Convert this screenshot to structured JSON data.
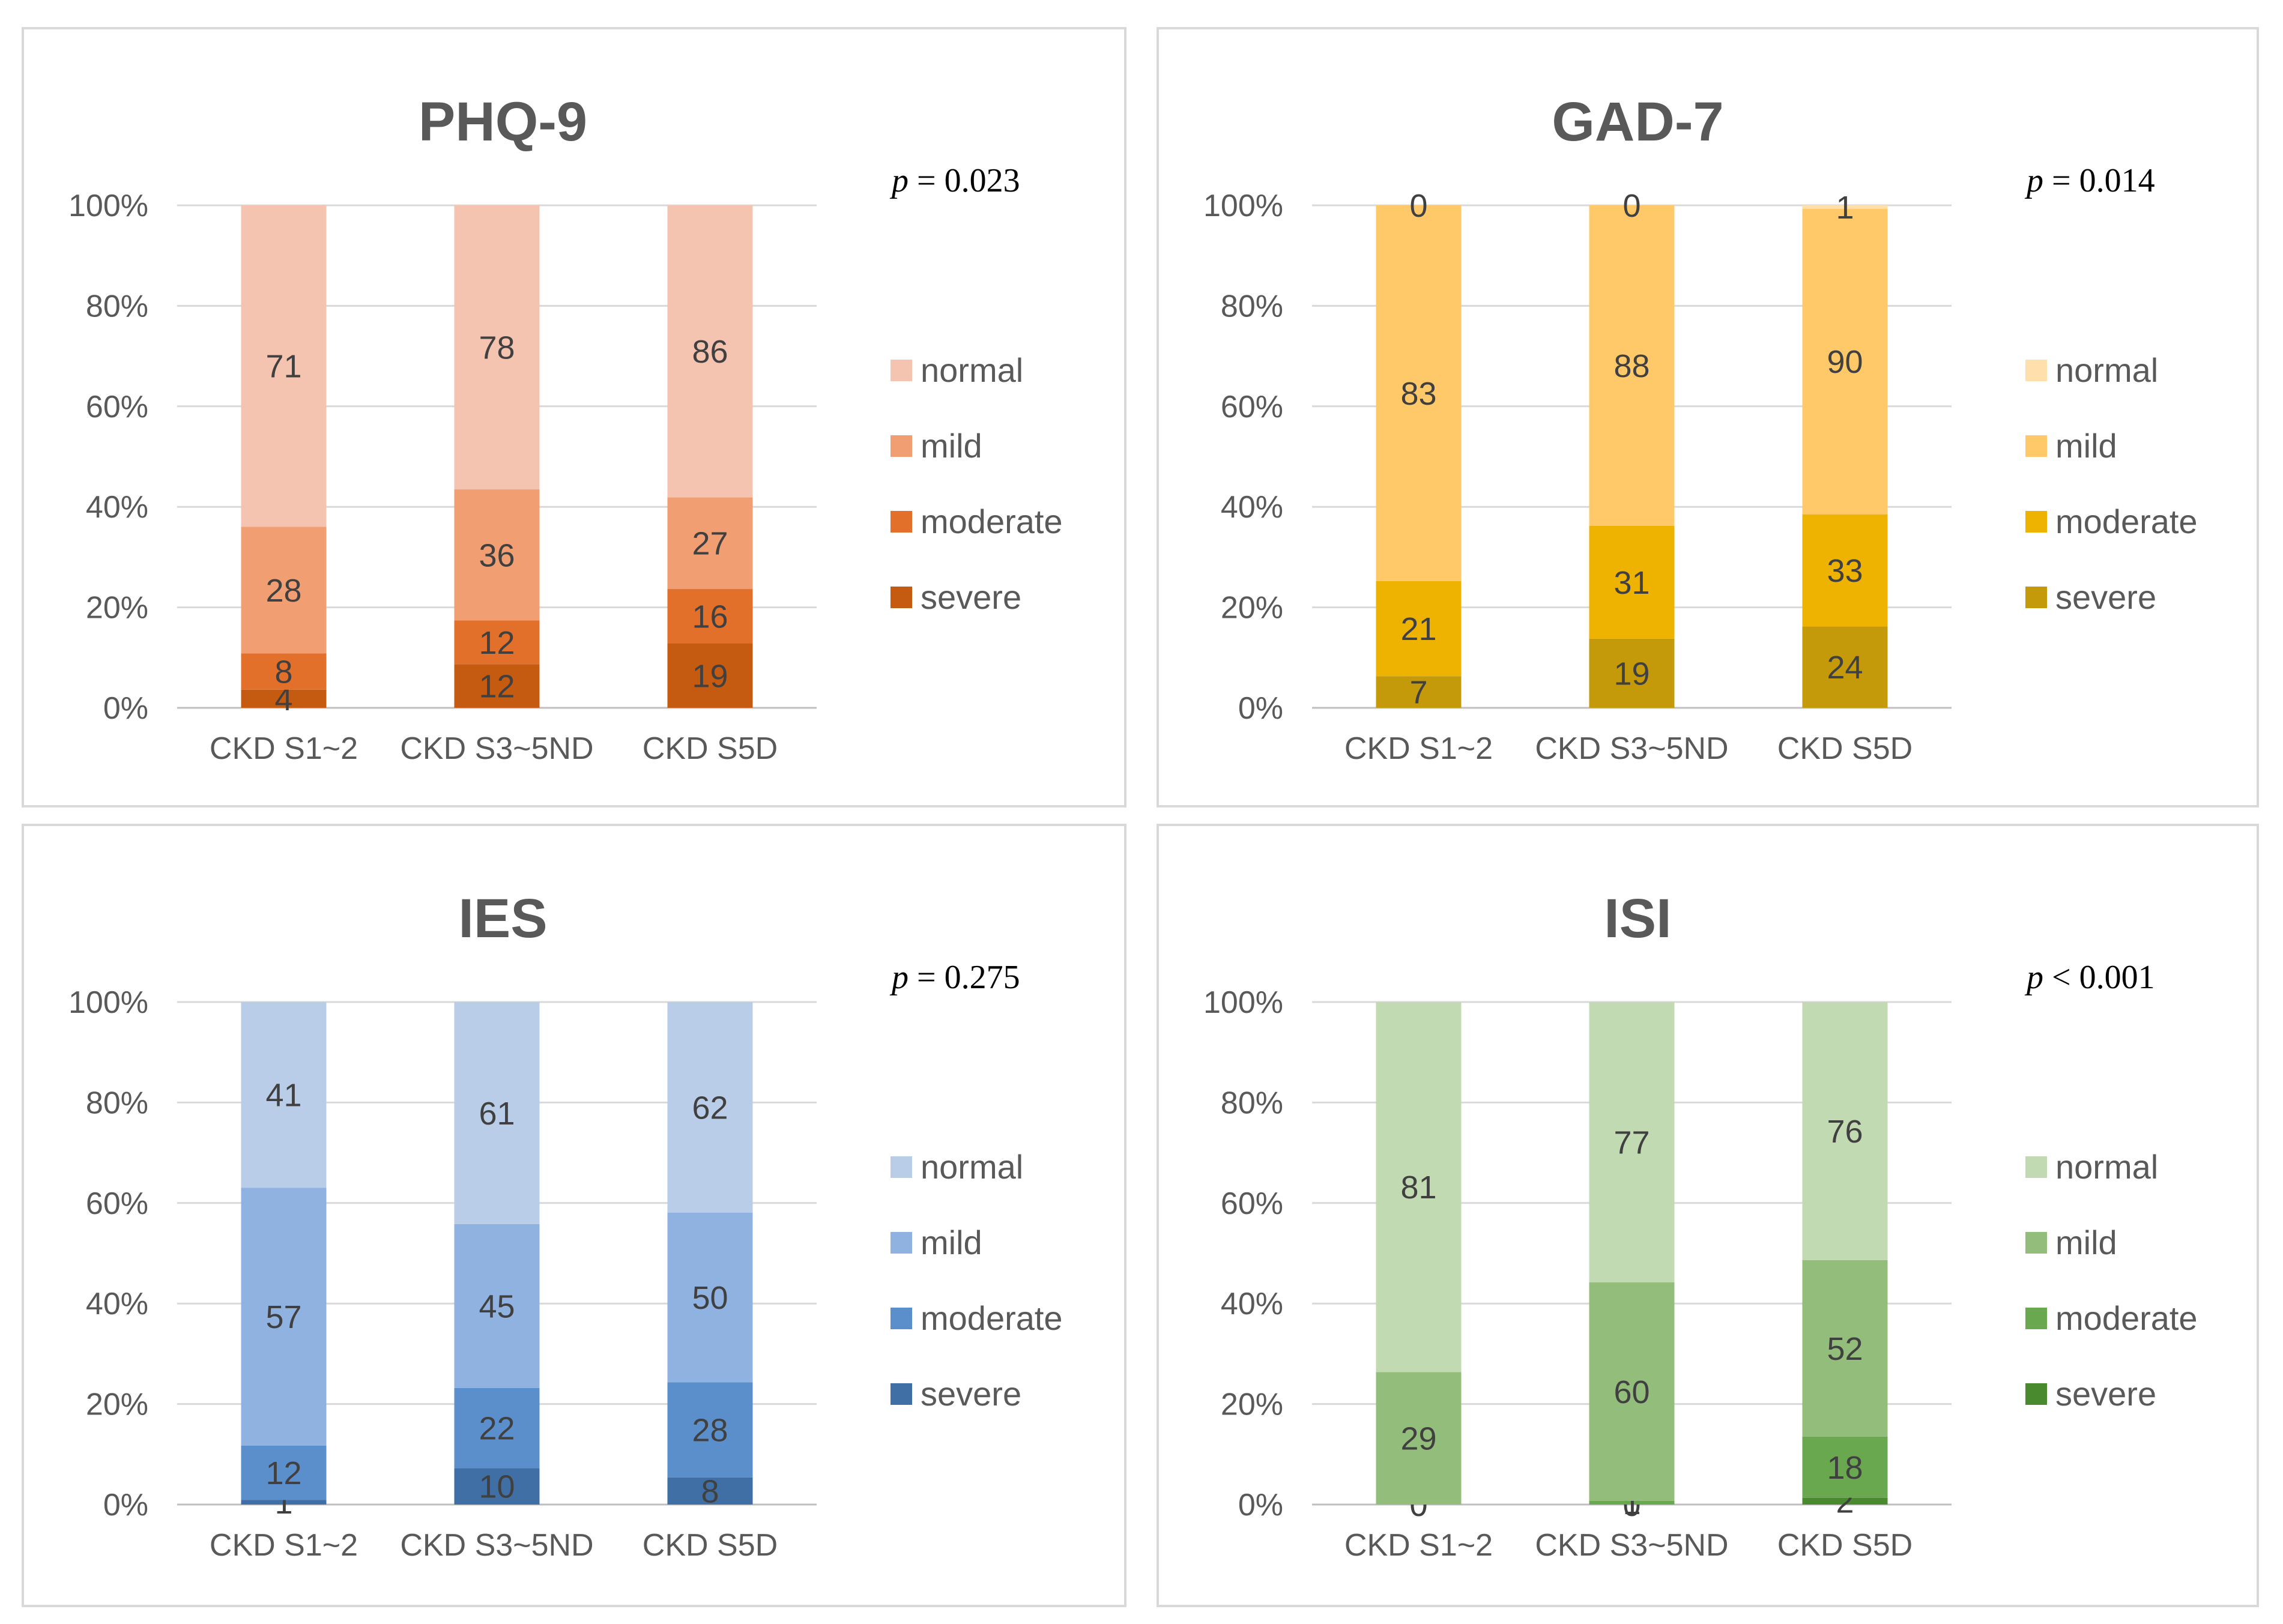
{
  "chart_data": [
    {
      "type": "bar",
      "stacked": "percent",
      "title": "PHQ-9",
      "p_value": {
        "symbol": "p",
        "text": "= 0.023"
      },
      "categories": [
        "CKD S1~2",
        "CKD S3~5ND",
        "CKD S5D"
      ],
      "y_ticks": [
        "0%",
        "20%",
        "40%",
        "60%",
        "80%",
        "100%"
      ],
      "ylim": [
        0,
        100
      ],
      "grid": true,
      "legend_position": "right",
      "series": [
        {
          "name": "severe",
          "color": "#c55a11",
          "values": [
            4,
            12,
            19
          ]
        },
        {
          "name": "moderate",
          "color": "#e2702b",
          "values": [
            8,
            12,
            16
          ]
        },
        {
          "name": "mild",
          "color": "#f19e72",
          "values": [
            28,
            36,
            27
          ]
        },
        {
          "name": "normal",
          "color": "#f5c4b0",
          "values": [
            71,
            78,
            86
          ]
        }
      ]
    },
    {
      "type": "bar",
      "stacked": "percent",
      "title": "GAD-7",
      "p_value": {
        "symbol": "p",
        "text": "= 0.014"
      },
      "categories": [
        "CKD S1~2",
        "CKD S3~5ND",
        "CKD S5D"
      ],
      "y_ticks": [
        "0%",
        "20%",
        "40%",
        "60%",
        "80%",
        "100%"
      ],
      "ylim": [
        0,
        100
      ],
      "grid": true,
      "legend_position": "right",
      "series": [
        {
          "name": "severe",
          "color": "#c49a0a",
          "values": [
            7,
            19,
            24
          ]
        },
        {
          "name": "moderate",
          "color": "#eeb300",
          "values": [
            21,
            31,
            33
          ]
        },
        {
          "name": "mild",
          "color": "#ffc96a",
          "values": [
            83,
            88,
            90
          ]
        },
        {
          "name": "normal",
          "color": "#ffe0ad",
          "values": [
            0,
            0,
            1
          ]
        }
      ]
    },
    {
      "type": "bar",
      "stacked": "percent",
      "title": "IES",
      "p_value": {
        "symbol": "p",
        "text": "= 0.275"
      },
      "categories": [
        "CKD S1~2",
        "CKD S3~5ND",
        "CKD S5D"
      ],
      "y_ticks": [
        "0%",
        "20%",
        "40%",
        "60%",
        "80%",
        "100%"
      ],
      "ylim": [
        0,
        100
      ],
      "grid": true,
      "legend_position": "right",
      "series": [
        {
          "name": "severe",
          "color": "#3f6fa5",
          "values": [
            1,
            10,
            8
          ]
        },
        {
          "name": "moderate",
          "color": "#5b8fcc",
          "values": [
            12,
            22,
            28
          ]
        },
        {
          "name": "mild",
          "color": "#8fb2e0",
          "values": [
            57,
            45,
            50
          ]
        },
        {
          "name": "normal",
          "color": "#b9cde9",
          "values": [
            41,
            61,
            62
          ]
        }
      ]
    },
    {
      "type": "bar",
      "stacked": "percent",
      "title": "ISI",
      "p_value": {
        "symbol": "p",
        "text": "< 0.001"
      },
      "categories": [
        "CKD S1~2",
        "CKD S3~5ND",
        "CKD S5D"
      ],
      "y_ticks": [
        "0%",
        "20%",
        "40%",
        "60%",
        "80%",
        "100%"
      ],
      "ylim": [
        0,
        100
      ],
      "grid": true,
      "legend_position": "right",
      "series": [
        {
          "name": "severe",
          "color": "#4a8a2e",
          "values": [
            0,
            0,
            2
          ]
        },
        {
          "name": "moderate",
          "color": "#6aa84f",
          "values": [
            0,
            1,
            18
          ]
        },
        {
          "name": "mild",
          "color": "#93bd7a",
          "values": [
            29,
            60,
            52
          ]
        },
        {
          "name": "normal",
          "color": "#c2dab2",
          "values": [
            81,
            77,
            76
          ]
        }
      ]
    }
  ]
}
